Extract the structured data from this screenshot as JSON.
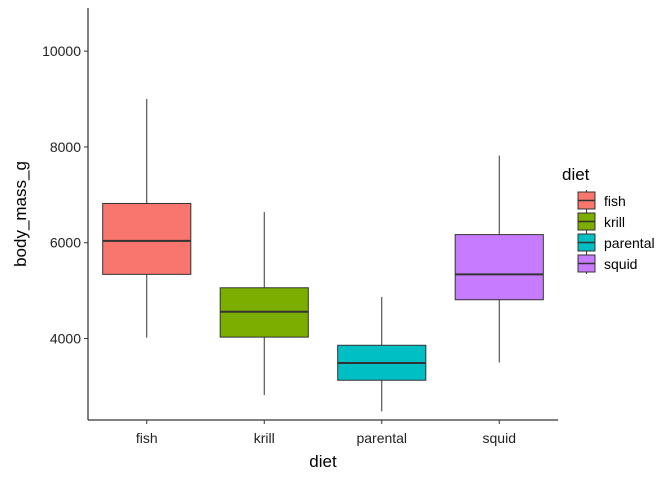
{
  "chart_data": {
    "type": "boxplot",
    "xlabel": "diet",
    "ylabel": "body_mass_g",
    "ylim": [
      2300,
      10900
    ],
    "yticks": [
      4000,
      6000,
      8000,
      10000
    ],
    "grid": false,
    "legend": {
      "title": "diet",
      "position": "right"
    },
    "categories": [
      "fish",
      "krill",
      "parental",
      "squid"
    ],
    "boxes": [
      {
        "category": "fish",
        "color": "#F8766D",
        "min": 4020,
        "q1": 5340,
        "median": 6040,
        "q3": 6820,
        "max": 9000
      },
      {
        "category": "krill",
        "color": "#7CAE00",
        "min": 2820,
        "q1": 4030,
        "median": 4560,
        "q3": 5060,
        "max": 6640
      },
      {
        "category": "parental",
        "color": "#00BFC4",
        "min": 2480,
        "q1": 3130,
        "median": 3490,
        "q3": 3860,
        "max": 4870
      },
      {
        "category": "squid",
        "color": "#C77CFF",
        "min": 3500,
        "q1": 4810,
        "median": 5340,
        "q3": 6170,
        "max": 7820
      }
    ]
  }
}
